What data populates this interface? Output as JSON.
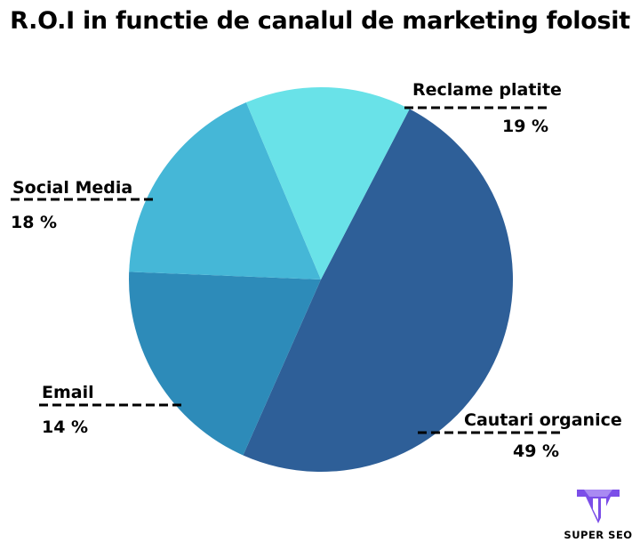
{
  "title": "R.O.I in functie de canalul de marketing folosit",
  "colors": {
    "cautari_organice": "#2e5f98",
    "reclame_platite": "#2d8bb9",
    "social_media": "#45b7d7",
    "email": "#69e2e8",
    "brand_purple": "#7b4ee8"
  },
  "chart_data": {
    "type": "pie",
    "title": "R.O.I in functie de canalul de marketing folosit",
    "slices": [
      {
        "label": "Cautari organice",
        "value": 49,
        "value_label": "49 %",
        "color": "#2e5f98"
      },
      {
        "label": "Reclame platite",
        "value": 19,
        "value_label": "19 %",
        "color": "#2d8bb9"
      },
      {
        "label": "Social Media",
        "value": 18,
        "value_label": "18 %",
        "color": "#45b7d7"
      },
      {
        "label": "Email",
        "value": 14,
        "value_label": "14 %",
        "color": "#69e2e8"
      }
    ]
  },
  "brand": {
    "name": "SUPER SEO",
    "logo_icon": "diamond-logo-icon"
  }
}
